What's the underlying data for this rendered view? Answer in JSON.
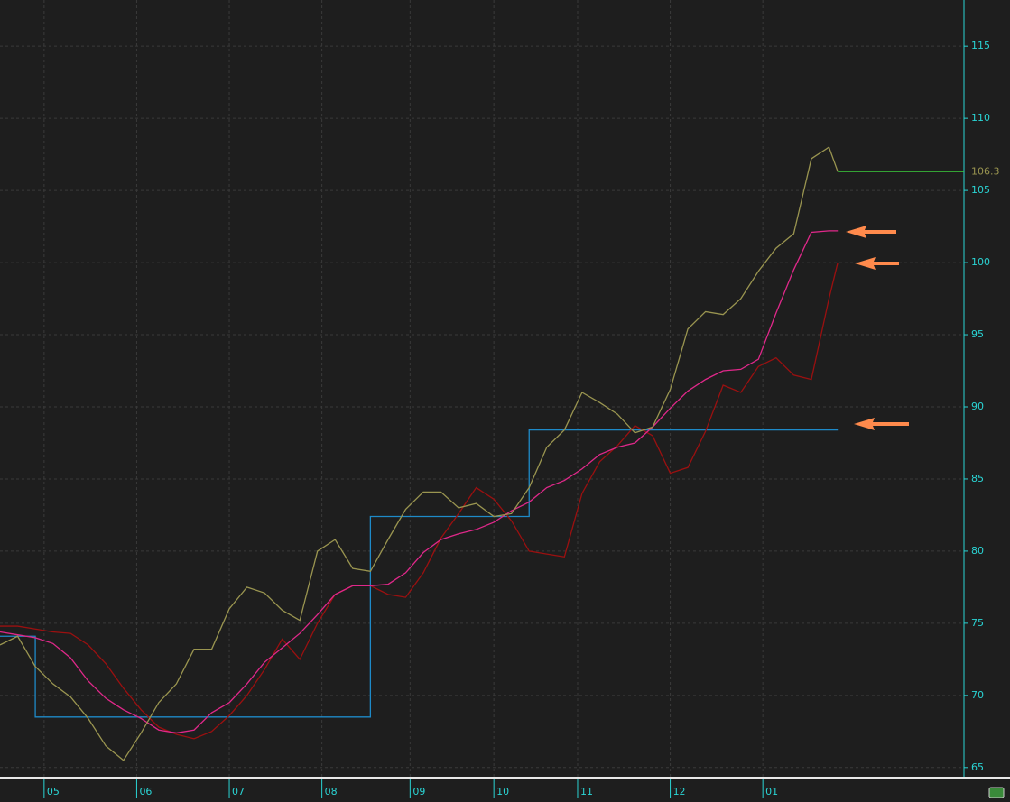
{
  "chart_data": {
    "type": "line",
    "x": [
      0,
      4,
      8,
      12,
      16,
      20,
      24,
      28,
      32,
      36,
      40,
      44,
      48,
      52,
      56,
      60,
      64,
      68,
      72,
      76,
      80,
      84,
      88,
      92,
      96,
      100,
      104,
      108,
      112,
      116,
      120,
      124,
      128,
      132,
      136,
      140,
      144,
      148,
      152,
      156,
      160,
      164,
      168,
      172,
      176,
      180,
      184,
      188,
      190
    ],
    "series": [
      {
        "color": "#1e8ac8",
        "step": true,
        "values": [
          74.1,
          74.1,
          68.5,
          68.5,
          68.5,
          68.5,
          68.5,
          68.5,
          68.5,
          68.5,
          68.5,
          68.5,
          68.5,
          68.5,
          68.5,
          68.5,
          68.5,
          68.5,
          68.5,
          68.5,
          68.5,
          82.4,
          82.4,
          82.4,
          82.4,
          82.4,
          82.4,
          82.4,
          82.4,
          82.4,
          88.4,
          88.4,
          88.4,
          88.4,
          88.4,
          88.4,
          88.4,
          88.4,
          88.4,
          88.4,
          88.4,
          88.4,
          88.4,
          88.4,
          88.4,
          88.4,
          88.4,
          88.4,
          88.4
        ]
      },
      {
        "color": "#9b1010",
        "values": [
          74.8,
          74.8,
          74.6,
          74.4,
          74.3,
          73.5,
          72.2,
          70.5,
          69.0,
          67.8,
          67.3,
          67.0,
          67.5,
          68.6,
          70.0,
          71.8,
          73.9,
          72.5,
          75.0,
          77.0,
          77.6,
          77.6,
          77.0,
          76.8,
          78.5,
          80.9,
          82.6,
          84.4,
          83.6,
          82.1,
          80.0,
          79.8,
          79.6,
          84.0,
          86.2,
          87.3,
          88.7,
          88.0,
          85.4,
          85.8,
          88.3,
          91.5,
          91.0,
          92.8,
          93.4,
          92.2,
          91.9,
          97.5,
          100.0
        ]
      },
      {
        "color": "#e0288a",
        "values": [
          74.4,
          74.2,
          74.0,
          73.6,
          72.6,
          71.0,
          69.8,
          69.0,
          68.4,
          67.6,
          67.4,
          67.6,
          68.8,
          69.5,
          70.8,
          72.3,
          73.3,
          74.3,
          75.6,
          77.0,
          77.6,
          77.6,
          77.7,
          78.5,
          79.9,
          80.8,
          81.2,
          81.5,
          82.0,
          82.8,
          83.4,
          84.4,
          84.9,
          85.7,
          86.7,
          87.2,
          87.5,
          88.6,
          89.9,
          91.1,
          91.9,
          92.5,
          92.6,
          93.3,
          96.5,
          99.5,
          102.1,
          102.2,
          102.2
        ]
      },
      {
        "color": "#9a9550",
        "values": [
          73.5,
          74.1,
          72.0,
          70.8,
          69.9,
          68.4,
          66.5,
          65.5,
          67.4,
          69.5,
          70.8,
          73.2,
          73.2,
          76.0,
          77.5,
          77.1,
          75.9,
          75.2,
          80.0,
          80.8,
          78.8,
          78.6,
          80.8,
          82.9,
          84.1,
          84.1,
          83.0,
          83.3,
          82.4,
          82.6,
          84.4,
          87.2,
          88.4,
          91.0,
          90.3,
          89.5,
          88.2,
          88.6,
          91.2,
          95.4,
          96.6,
          96.4,
          97.5,
          99.4,
          101.0,
          102.0,
          107.2,
          108.0,
          106.3
        ]
      }
    ],
    "last_value": 106.3,
    "last_value_color": "#3ccf3c",
    "xlim": [
      0,
      218
    ],
    "xticks": [
      {
        "value": 10,
        "label": "05"
      },
      {
        "value": 31,
        "label": "06"
      },
      {
        "value": 52,
        "label": "07"
      },
      {
        "value": 73,
        "label": "08"
      },
      {
        "value": 93,
        "label": "09"
      },
      {
        "value": 112,
        "label": "10"
      },
      {
        "value": 131,
        "label": "11"
      },
      {
        "value": 152,
        "label": "12"
      },
      {
        "value": 173,
        "label": "01"
      }
    ],
    "ylim": [
      64.3,
      118.2
    ],
    "yticks": [
      65,
      70,
      75,
      80,
      85,
      90,
      95,
      100,
      105,
      110,
      115
    ],
    "grid": true
  }
}
